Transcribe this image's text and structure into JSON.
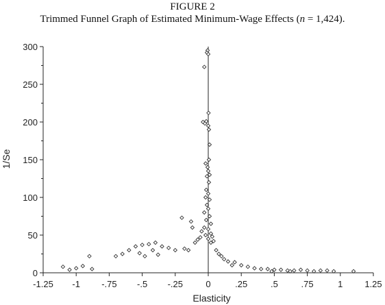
{
  "figure": {
    "number": "FIGURE 2",
    "title_before_n": "Trimmed Funnel Graph of Estimated Minimum-Wage Effects (",
    "title_n": "n",
    "title_after_n": " = 1,424)."
  },
  "chart_data": {
    "type": "scatter",
    "title": "Trimmed Funnel Graph of Estimated Minimum-Wage Effects (n = 1,424).",
    "xlabel": "Elasticity",
    "ylabel": "1/Se",
    "xlim": [
      -1.25,
      1.25
    ],
    "ylim": [
      0,
      300
    ],
    "x_ticks": [
      -1.25,
      -1,
      -0.75,
      -0.5,
      -0.25,
      0,
      0.25,
      0.5,
      0.75,
      1,
      1.25
    ],
    "x_tick_labels": [
      "-1.25",
      "-1",
      "-.75",
      "-.5",
      "-.25",
      "0",
      ".25",
      ".5",
      ".75",
      "1",
      "1.25"
    ],
    "y_ticks": [
      0,
      50,
      100,
      150,
      200,
      250,
      300
    ],
    "y_tick_labels": [
      "0",
      "50",
      "100",
      "150",
      "200",
      "250",
      "300"
    ],
    "reference_line_x": 0,
    "grid": false,
    "marker": "open diamond",
    "marker_color": "#333333",
    "series": [
      {
        "name": "",
        "points": [
          [
            -0.005,
            295
          ],
          [
            -0.01,
            292
          ],
          [
            0.0,
            290
          ],
          [
            -0.03,
            273
          ],
          [
            0.002,
            212
          ],
          [
            -0.04,
            200
          ],
          [
            -0.025,
            198
          ],
          [
            -0.015,
            201
          ],
          [
            0.0,
            195
          ],
          [
            0.005,
            190
          ],
          [
            0.01,
            170
          ],
          [
            0.005,
            150
          ],
          [
            -0.02,
            145
          ],
          [
            -0.005,
            140
          ],
          [
            0.0,
            135
          ],
          [
            0.01,
            130
          ],
          [
            -0.01,
            128
          ],
          [
            0.005,
            120
          ],
          [
            -0.015,
            110
          ],
          [
            0.0,
            105
          ],
          [
            -0.02,
            100
          ],
          [
            0.01,
            97
          ],
          [
            -0.01,
            90
          ],
          [
            0.0,
            85
          ],
          [
            -0.03,
            80
          ],
          [
            0.01,
            75
          ],
          [
            -0.015,
            70
          ],
          [
            0.02,
            65
          ],
          [
            -0.03,
            60
          ],
          [
            0.0,
            58
          ],
          [
            -0.05,
            55
          ],
          [
            0.02,
            52
          ],
          [
            -0.02,
            50
          ],
          [
            0.03,
            48
          ],
          [
            -0.06,
            47
          ],
          [
            0.0,
            45
          ],
          [
            -0.08,
            44
          ],
          [
            0.04,
            42
          ],
          [
            -0.1,
            40
          ],
          [
            0.02,
            40
          ],
          [
            -0.2,
            73
          ],
          [
            -0.13,
            68
          ],
          [
            -0.12,
            60
          ],
          [
            -0.4,
            40
          ],
          [
            -0.45,
            38
          ],
          [
            -0.5,
            37
          ],
          [
            -0.35,
            35
          ],
          [
            -0.55,
            35
          ],
          [
            -0.3,
            33
          ],
          [
            -0.6,
            30
          ],
          [
            -0.42,
            30
          ],
          [
            -0.25,
            30
          ],
          [
            -0.18,
            32
          ],
          [
            -0.15,
            30
          ],
          [
            -0.7,
            22
          ],
          [
            -0.9,
            22
          ],
          [
            -0.65,
            25
          ],
          [
            -0.52,
            26
          ],
          [
            -0.48,
            22
          ],
          [
            -0.38,
            24
          ],
          [
            0.06,
            30
          ],
          [
            0.08,
            25
          ],
          [
            0.1,
            22
          ],
          [
            0.12,
            18
          ],
          [
            0.15,
            15
          ],
          [
            0.2,
            14
          ],
          [
            0.18,
            10
          ],
          [
            0.25,
            10
          ],
          [
            0.3,
            8
          ],
          [
            0.35,
            6
          ],
          [
            0.4,
            5
          ],
          [
            0.45,
            5
          ],
          [
            0.5,
            4
          ],
          [
            0.55,
            4
          ],
          [
            0.6,
            3
          ],
          [
            0.65,
            3
          ],
          [
            0.7,
            4
          ],
          [
            0.75,
            3
          ],
          [
            0.8,
            2
          ],
          [
            0.85,
            3
          ],
          [
            0.9,
            3
          ],
          [
            1.1,
            2
          ],
          [
            0.95,
            2
          ],
          [
            0.62,
            2
          ],
          [
            0.48,
            2
          ],
          [
            -1.1,
            8
          ],
          [
            -1.05,
            4
          ],
          [
            -1.0,
            6
          ],
          [
            -0.95,
            9
          ],
          [
            -0.88,
            5
          ]
        ]
      }
    ]
  }
}
